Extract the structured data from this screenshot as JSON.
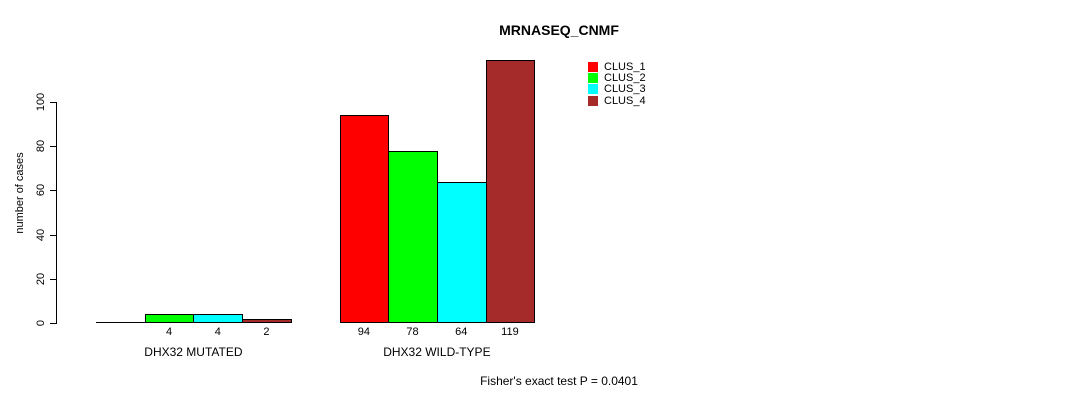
{
  "chart_data": {
    "type": "bar",
    "title": "MRNASEQ_CNMF",
    "ylabel": "number of cases",
    "footnote": "Fisher's exact test P = 0.0401",
    "groups": [
      "DHX32 MUTATED",
      "DHX32 WILD-TYPE"
    ],
    "series": [
      {
        "name": "CLUS_1",
        "color": "#FF0000",
        "values": [
          0,
          94
        ]
      },
      {
        "name": "CLUS_2",
        "color": "#00FF00",
        "values": [
          4,
          78
        ]
      },
      {
        "name": "CLUS_3",
        "color": "#00FFFF",
        "values": [
          4,
          64
        ]
      },
      {
        "name": "CLUS_4",
        "color": "#A52A2A",
        "values": [
          2,
          119
        ]
      }
    ],
    "bar_labels": [
      [
        "",
        "4",
        "4",
        "2"
      ],
      [
        "94",
        "78",
        "64",
        "119"
      ]
    ],
    "yticks": [
      "0",
      "20",
      "40",
      "60",
      "80",
      "100"
    ],
    "ylim": [
      0,
      100
    ],
    "grid": false,
    "legend_position": "top-right"
  }
}
